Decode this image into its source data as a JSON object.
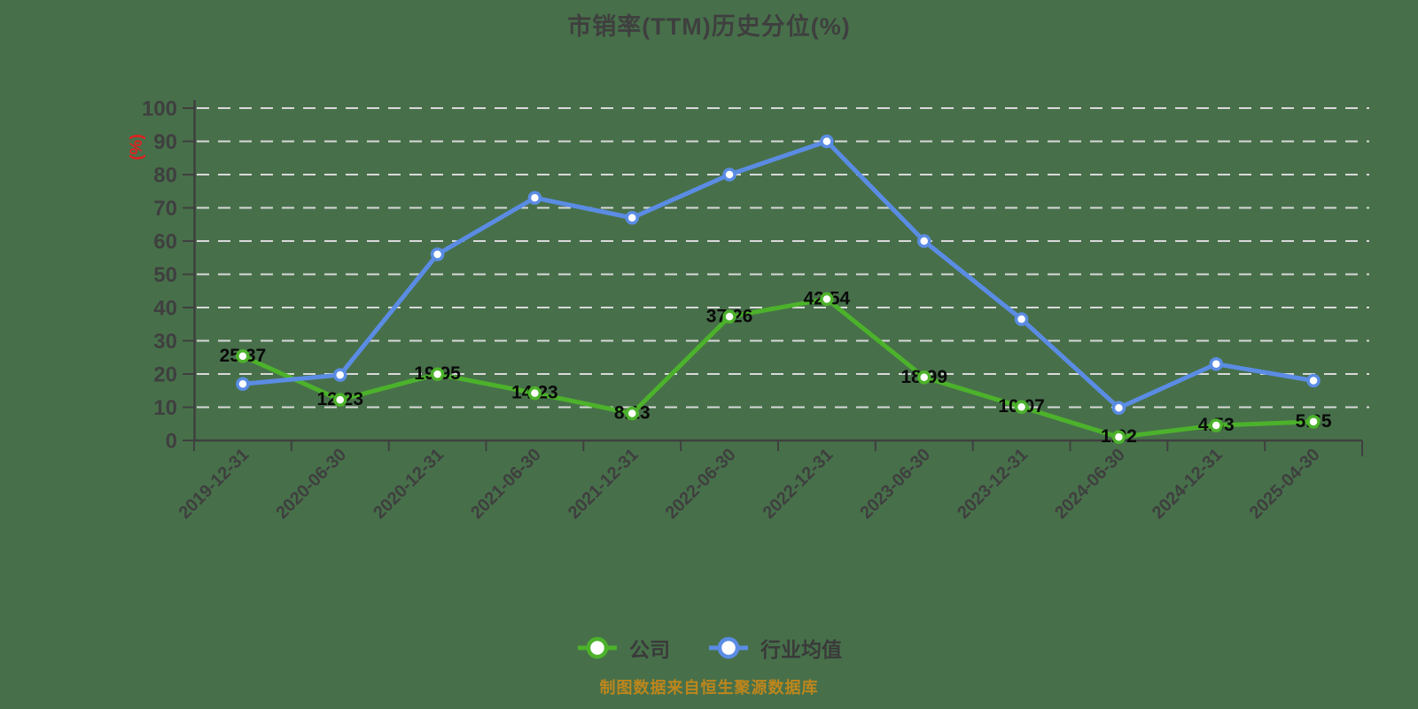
{
  "title": "市销率(TTM)历史分位(%)",
  "footer": {
    "text": "制图数据来自恒生聚源数据库"
  },
  "colors": {
    "background": "#47704a",
    "company_series": "#4cb22b",
    "industry_series": "#5b8ce4",
    "gridline": "#d9d9d9",
    "axis": "#3f3f3f",
    "tick_label": "#3f3f3f",
    "data_label": "#0a0a0a",
    "y_unit_label": "#e0201f",
    "footer_text": "#bd861c"
  },
  "chart_data": {
    "type": "line",
    "title": "市销率(TTM)历史分位(%)",
    "xlabel": "",
    "ylabel": "(%)",
    "ylim": [
      0,
      100
    ],
    "yticks": [
      0,
      10,
      20,
      30,
      40,
      50,
      60,
      70,
      80,
      90,
      100
    ],
    "grid": "horizontal dashed",
    "legend_position": "bottom",
    "categories": [
      "2019-12-31",
      "2020-06-30",
      "2020-12-31",
      "2021-06-30",
      "2021-12-31",
      "2022-06-30",
      "2022-12-31",
      "2023-06-30",
      "2023-12-31",
      "2024-06-30",
      "2024-12-31",
      "2025-04-30"
    ],
    "series": [
      {
        "name": "公司",
        "color": "#4cb22b",
        "labels_visible": true,
        "values": [
          25.37,
          12.23,
          19.95,
          14.23,
          8.13,
          37.26,
          42.54,
          18.99,
          10.07,
          1.02,
          4.53,
          5.65
        ]
      },
      {
        "name": "行业均值",
        "color": "#5b8ce4",
        "labels_visible": false,
        "values": [
          17,
          19.7,
          56,
          73,
          67,
          80,
          90,
          60,
          36.5,
          9.8,
          23,
          18
        ]
      }
    ]
  }
}
